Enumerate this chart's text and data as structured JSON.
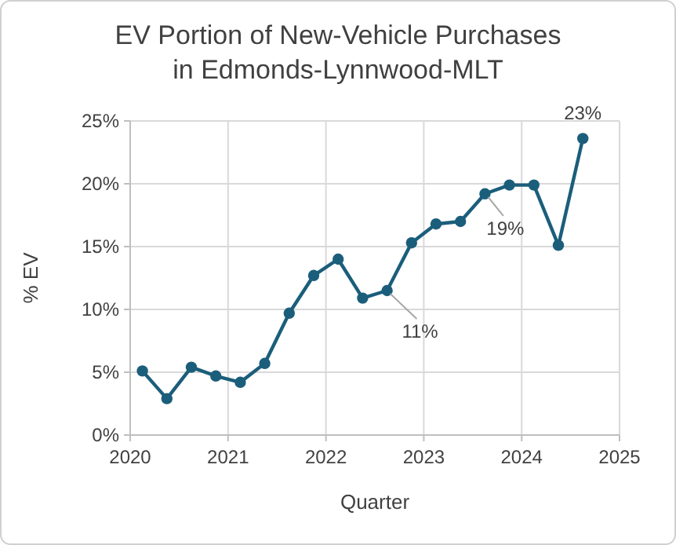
{
  "chart_data": {
    "type": "line",
    "title": "EV Portion of New-Vehicle Purchases\nin Edmonds-Lynnwood-MLT",
    "xlabel": "Quarter",
    "ylabel": "% EV",
    "x": [
      2020.125,
      2020.375,
      2020.625,
      2020.875,
      2021.125,
      2021.375,
      2021.625,
      2021.875,
      2022.125,
      2022.375,
      2022.625,
      2022.875,
      2023.125,
      2023.375,
      2023.625,
      2023.875,
      2024.125,
      2024.375,
      2024.625
    ],
    "series": [
      {
        "color": "#1b5e7b",
        "values": [
          5.1,
          2.9,
          5.4,
          4.7,
          4.2,
          5.7,
          9.7,
          12.7,
          14.0,
          10.9,
          11.5,
          15.3,
          16.8,
          17.0,
          19.2,
          19.9,
          19.9,
          15.1,
          23.6
        ]
      }
    ],
    "xlim": [
      2020,
      2025
    ],
    "xticks": [
      2020,
      2021,
      2022,
      2023,
      2024,
      2025
    ],
    "ylim": [
      0,
      25
    ],
    "yticks": [
      {
        "value": 0,
        "label": "0%"
      },
      {
        "value": 5,
        "label": "5%"
      },
      {
        "value": 10,
        "label": "10%"
      },
      {
        "value": 15,
        "label": "15%"
      },
      {
        "value": 20,
        "label": "20%"
      },
      {
        "value": 25,
        "label": "25%"
      }
    ],
    "grid": true,
    "marker": "circle",
    "line_style": "solid",
    "annotations": [
      {
        "text": "11%",
        "x": 2022.625,
        "y": 11.5
      },
      {
        "text": "19%",
        "x": 2023.625,
        "y": 19.2
      },
      {
        "text": "23%",
        "x": 2024.625,
        "y": 23.6
      }
    ]
  }
}
